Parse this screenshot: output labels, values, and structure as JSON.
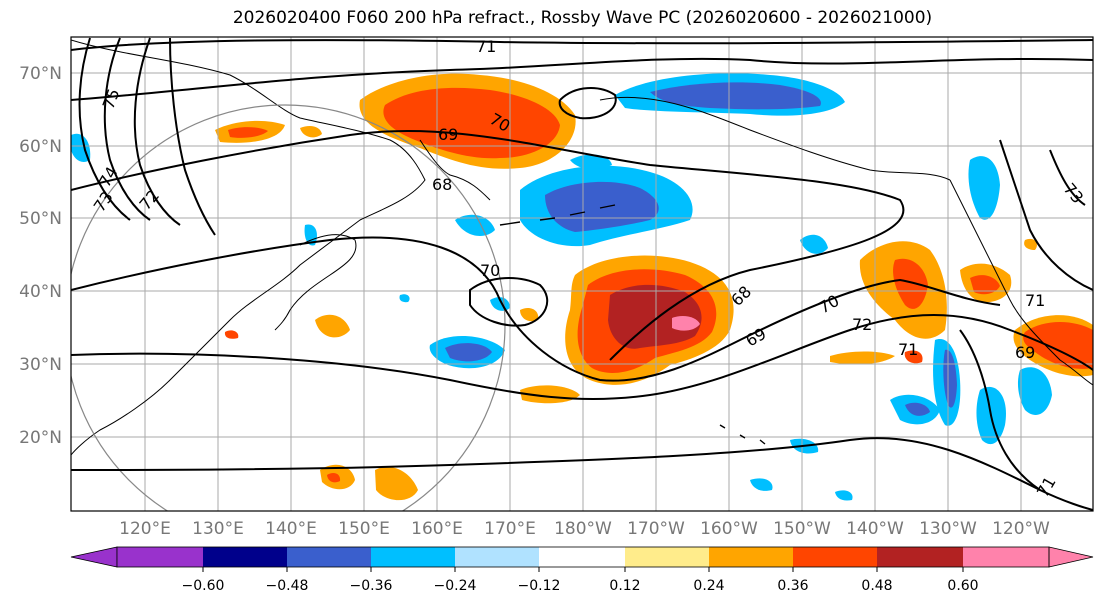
{
  "title": "2026020400 F060 200 hPa refract., Rossby Wave PC (2026020600 - 2026021000)",
  "map": {
    "lat_labels": [
      "70°N",
      "60°N",
      "50°N",
      "40°N",
      "30°N",
      "20°N"
    ],
    "lon_labels": [
      "120°E",
      "130°E",
      "140°E",
      "150°E",
      "160°E",
      "170°E",
      "180°W",
      "170°W",
      "160°W",
      "150°W",
      "140°W",
      "130°W",
      "120°W"
    ],
    "gridline_color": "#aaaaaa",
    "contour_labels": [
      "71",
      "75",
      "74",
      "73",
      "72",
      "69",
      "70",
      "68",
      "70",
      "69",
      "68",
      "70",
      "72",
      "71",
      "69",
      "73",
      "71",
      "71"
    ]
  },
  "colorbar": {
    "tick_labels": [
      "−0.60",
      "−0.48",
      "−0.36",
      "−0.24",
      "−0.12",
      "0.12",
      "0.24",
      "0.36",
      "0.48",
      "0.60"
    ],
    "colors": [
      "#9932cc",
      "#00008b",
      "#3a5fcd",
      "#00bfff",
      "#b0e2ff",
      "#ffffff",
      "#ffec8b",
      "#ffa500",
      "#ff4500",
      "#b22222",
      "#ff82ab"
    ]
  }
}
